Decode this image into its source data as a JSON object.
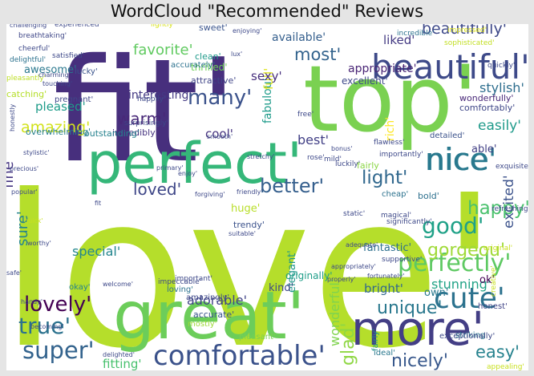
{
  "chart_data": {
    "type": "wordcloud",
    "title": "WordCloud \"Recommended\" Reviews",
    "colormap": "viridis",
    "background": "#ffffff",
    "words": [
      {
        "text": "love'",
        "color": "#b5de2b"
      },
      {
        "text": "fit'",
        "color": "#472f7d"
      },
      {
        "text": "great'",
        "color": "#6ccd5a"
      },
      {
        "text": "top'",
        "color": "#7ad151"
      },
      {
        "text": "perfect'",
        "color": "#35b779"
      },
      {
        "text": "more'",
        "color": "#433e85"
      },
      {
        "text": "comfortable'",
        "color": "#3b528b"
      },
      {
        "text": "beautiful'",
        "color": "#3e4a89"
      },
      {
        "text": "nice'",
        "color": "#29798e"
      },
      {
        "text": "cute'",
        "color": "#2c728e"
      },
      {
        "text": "perfectly'",
        "color": "#5ec962"
      },
      {
        "text": "super'",
        "color": "#33638d"
      },
      {
        "text": "true'",
        "color": "#2c728e"
      },
      {
        "text": "lovely'",
        "color": "#440154"
      },
      {
        "text": "gorgeou'",
        "color": "#a0da39"
      },
      {
        "text": "good'",
        "color": "#1fa187"
      },
      {
        "text": "better'",
        "color": "#355f8d"
      },
      {
        "text": "many'",
        "color": "#3b528b"
      },
      {
        "text": "light'",
        "color": "#31688e"
      },
      {
        "text": "happy'",
        "color": "#4ac16d"
      },
      {
        "text": "unique'",
        "color": "#2a788e"
      },
      {
        "text": "easy'",
        "color": "#26828e"
      },
      {
        "text": "nicely'",
        "color": "#38588c"
      },
      {
        "text": "glad'",
        "color": "#8fd744"
      },
      {
        "text": "loved'",
        "color": "#3f4788"
      },
      {
        "text": "warm'",
        "color": "#482878"
      },
      {
        "text": "amazing'",
        "color": "#d2e21b"
      },
      {
        "text": "beautifully'",
        "color": "#3e4989"
      },
      {
        "text": "liked'",
        "color": "#443a83"
      },
      {
        "text": "favorite'",
        "color": "#60ca60"
      },
      {
        "text": "most'",
        "color": "#33638d"
      },
      {
        "text": "fitting'",
        "color": "#48c16e"
      },
      {
        "text": "stunning'",
        "color": "#20a386"
      },
      {
        "text": "fabulou'",
        "color": "#1e9b8a"
      },
      {
        "text": "easily'",
        "color": "#1f9a8a"
      },
      {
        "text": "nice",
        "color": "#29798e"
      },
      {
        "text": "interesting'",
        "color": "#443983"
      },
      {
        "text": "stylish'",
        "color": "#2e6e8e"
      },
      {
        "text": "excited'",
        "color": "#3b528b"
      },
      {
        "text": "full'",
        "color": "#dde318"
      },
      {
        "text": "wonderful'",
        "color": "#7fd34e"
      },
      {
        "text": "adorable'",
        "color": "#414487"
      },
      {
        "text": "appropriate'",
        "color": "#482475"
      },
      {
        "text": "available'",
        "color": "#355f8d"
      },
      {
        "text": "best'",
        "color": "#424086"
      },
      {
        "text": "special'",
        "color": "#24868e"
      },
      {
        "text": "bright'",
        "color": "#31688e"
      },
      {
        "text": "elegant'",
        "color": "#1f968b"
      },
      {
        "text": "sexy'",
        "color": "#472f7d"
      },
      {
        "text": "cool'",
        "color": "#46337f"
      },
      {
        "text": "fine'",
        "color": "#453581"
      },
      {
        "text": "sure'",
        "color": "#25848e"
      },
      {
        "text": "pleased'",
        "color": "#1e9c89"
      },
      {
        "text": "kind'",
        "color": "#3f4889"
      },
      {
        "text": "awesome'",
        "color": "#2a788e"
      },
      {
        "text": "huge'",
        "color": "#b8de29"
      },
      {
        "text": "excellent'",
        "color": "#3e4989"
      },
      {
        "text": "fantastic'",
        "color": "#2d708e"
      },
      {
        "text": "able'",
        "color": "#424086"
      },
      {
        "text": "originally'",
        "color": "#1f9e89"
      },
      {
        "text": "ok'",
        "color": "#440154"
      },
      {
        "text": "thrilled'",
        "color": "#6ece58"
      },
      {
        "text": "wonderfully'",
        "color": "#482878"
      },
      {
        "text": "comfortably'",
        "color": "#3f4788"
      },
      {
        "text": "rich'",
        "color": "#fde725"
      },
      {
        "text": "own'",
        "color": "#2a788e"
      },
      {
        "text": "overwhelming'",
        "color": "#27808e"
      },
      {
        "text": "incredibly'",
        "color": "#46337f"
      },
      {
        "text": "outstanding'",
        "color": "#26828e"
      },
      {
        "text": "sweet'",
        "color": "#3a548c"
      },
      {
        "text": "clean'",
        "color": "#1f9a8a"
      },
      {
        "text": "attractive'",
        "color": "#404588"
      },
      {
        "text": "fairly",
        "color": "#8bd646"
      },
      {
        "text": "trendy'",
        "color": "#3b528b"
      },
      {
        "text": "bold'",
        "color": "#2d708e"
      },
      {
        "text": "loving'",
        "color": "#2c728e"
      },
      {
        "text": "amazingly'",
        "color": "#3e4989"
      },
      {
        "text": "mostly'",
        "color": "#9fda3a"
      },
      {
        "text": "pleasant'",
        "color": "#7ad151"
      },
      {
        "text": "accurate'",
        "color": "#3a548c"
      },
      {
        "text": "okay'",
        "color": "#26828e"
      },
      {
        "text": "striking",
        "color": "#2a788e"
      },
      {
        "text": "fairly'",
        "color": "#21918c"
      },
      {
        "text": "ideal'",
        "color": "#2a788e"
      },
      {
        "text": "exceptionally'",
        "color": "#3e4989"
      },
      {
        "text": "honest'",
        "color": "#414487"
      },
      {
        "text": "lucky'",
        "color": "#3a548c"
      },
      {
        "text": "cheap'",
        "color": "#2c728e"
      },
      {
        "text": "detailed'",
        "color": "#3b528b"
      },
      {
        "text": "accurately'",
        "color": "#2c728e"
      },
      {
        "text": "breathtaking'",
        "color": "#3f4788"
      },
      {
        "text": "cheerful'",
        "color": "#3e4989"
      },
      {
        "text": "delightful'",
        "color": "#2c728e"
      },
      {
        "text": "pleasantly'",
        "color": "#bddf26"
      },
      {
        "text": "catching'",
        "color": "#b5de2b"
      },
      {
        "text": "pregnant'",
        "color": "#3f4788"
      },
      {
        "text": "honestly",
        "color": "#3e4a89"
      },
      {
        "text": "surprisingly'",
        "color": "#3e4989"
      },
      {
        "text": "happily'",
        "color": "#3e4989"
      },
      {
        "text": "incredible'",
        "color": "#2c728e"
      },
      {
        "text": "quickly'",
        "color": "#3e4989"
      },
      {
        "text": "impressed'",
        "color": "#dde318"
      },
      {
        "text": "sophisticated'",
        "color": "#c2df23"
      },
      {
        "text": "satisfied'",
        "color": "#3e4989"
      },
      {
        "text": "experienced'",
        "color": "#3e4989"
      },
      {
        "text": "lightly'",
        "color": "#d8e219"
      },
      {
        "text": "enjoying'",
        "color": "#3e4989"
      },
      {
        "text": "enjoy'",
        "color": "#3e4989"
      },
      {
        "text": "friendly'",
        "color": "#3e4989"
      },
      {
        "text": "smooth'",
        "color": "#3e4989"
      },
      {
        "text": "free'",
        "color": "#3e4989"
      },
      {
        "text": "rose'",
        "color": "#3e4989"
      },
      {
        "text": "mild'",
        "color": "#3e4989"
      },
      {
        "text": "luckily'",
        "color": "#3e4989"
      },
      {
        "text": "flawless'",
        "color": "#3e4989"
      },
      {
        "text": "importantly'",
        "color": "#3e4989"
      },
      {
        "text": "significantly'",
        "color": "#3e4989"
      },
      {
        "text": "magical'",
        "color": "#3e4989"
      },
      {
        "text": "static'",
        "color": "#3e4989"
      },
      {
        "text": "exquisite'",
        "color": "#3e4989"
      },
      {
        "text": "refreshing'",
        "color": "#3e4989"
      },
      {
        "text": "original'",
        "color": "#c8e020"
      },
      {
        "text": "supportive'",
        "color": "#3e4989"
      },
      {
        "text": "fortunately'",
        "color": "#3e4989"
      },
      {
        "text": "adequate'",
        "color": "#3e4989"
      },
      {
        "text": "impeccable'",
        "color": "#3e4989"
      },
      {
        "text": "important'",
        "color": "#3e4989"
      },
      {
        "text": "welcome'",
        "color": "#3e4989"
      },
      {
        "text": "becoming'",
        "color": "#3e4989"
      },
      {
        "text": "delighted'",
        "color": "#3e4989"
      },
      {
        "text": "confident'",
        "color": "#b5de2b"
      },
      {
        "text": "precious'",
        "color": "#3e4989"
      },
      {
        "text": "popular'",
        "color": "#3e4989"
      },
      {
        "text": "quick'",
        "color": "#c8e020"
      },
      {
        "text": "worthy'",
        "color": "#3e4989"
      },
      {
        "text": "safe'",
        "color": "#3e4989"
      },
      {
        "text": "handy'",
        "color": "#3e4989"
      },
      {
        "text": "charming'",
        "color": "#3e4989"
      },
      {
        "text": "touching'",
        "color": "#3e4989"
      },
      {
        "text": "appealing'",
        "color": "#c8e020"
      },
      {
        "text": "creative'",
        "color": "#c8e020"
      },
      {
        "text": "challenging'",
        "color": "#3e4989"
      },
      {
        "text": "properly'",
        "color": "#3e4989"
      },
      {
        "text": "appropriately'",
        "color": "#3e4989"
      },
      {
        "text": "stylistic'",
        "color": "#3e4989"
      },
      {
        "text": "primary'",
        "color": "#3e4989"
      },
      {
        "text": "forgiving'",
        "color": "#3e4989"
      },
      {
        "text": "suitable'",
        "color": "#3e4989"
      },
      {
        "text": "fit",
        "color": "#3e4989"
      },
      {
        "text": "lux'",
        "color": "#3e4989"
      },
      {
        "text": "bonus'",
        "color": "#3e4989"
      },
      {
        "text": "stretchy'",
        "color": "#3e4989"
      }
    ]
  }
}
